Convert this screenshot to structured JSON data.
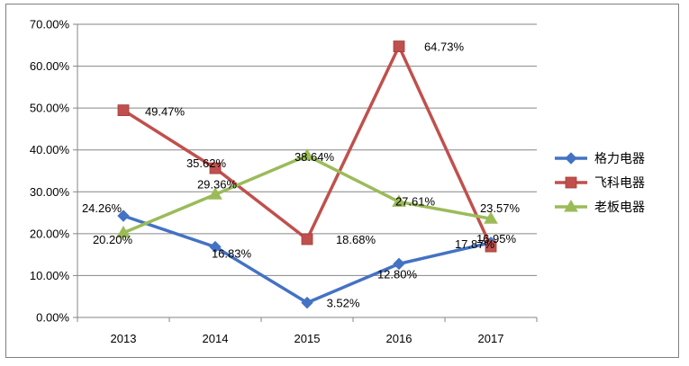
{
  "chart_data": {
    "type": "line",
    "categories": [
      "2013",
      "2014",
      "2015",
      "2016",
      "2017"
    ],
    "ylim": [
      0,
      70
    ],
    "yticks": [
      "0.00%",
      "10.00%",
      "20.00%",
      "30.00%",
      "40.00%",
      "50.00%",
      "60.00%",
      "70.00%"
    ],
    "grid": true,
    "legend_position": "right",
    "series": [
      {
        "name": "格力电器",
        "color": "#4472c4",
        "marker": "diamond",
        "values": [
          24.26,
          16.83,
          3.52,
          12.8,
          17.87
        ],
        "labels": [
          "24.26%",
          "16.83%",
          "3.52%",
          "12.80%",
          "17.87%"
        ]
      },
      {
        "name": "飞科电器",
        "color": "#c0504d",
        "marker": "square",
        "values": [
          49.47,
          35.62,
          18.68,
          64.73,
          16.95
        ],
        "labels": [
          "49.47%",
          "35.62%",
          "18.68%",
          "64.73%",
          "16.95%"
        ]
      },
      {
        "name": "老板电器",
        "color": "#9bbb59",
        "marker": "triangle",
        "values": [
          20.2,
          29.36,
          38.64,
          27.61,
          23.57
        ],
        "labels": [
          "20.20%",
          "29.36%",
          "38.64%",
          "27.61%",
          "23.57%"
        ]
      }
    ]
  }
}
